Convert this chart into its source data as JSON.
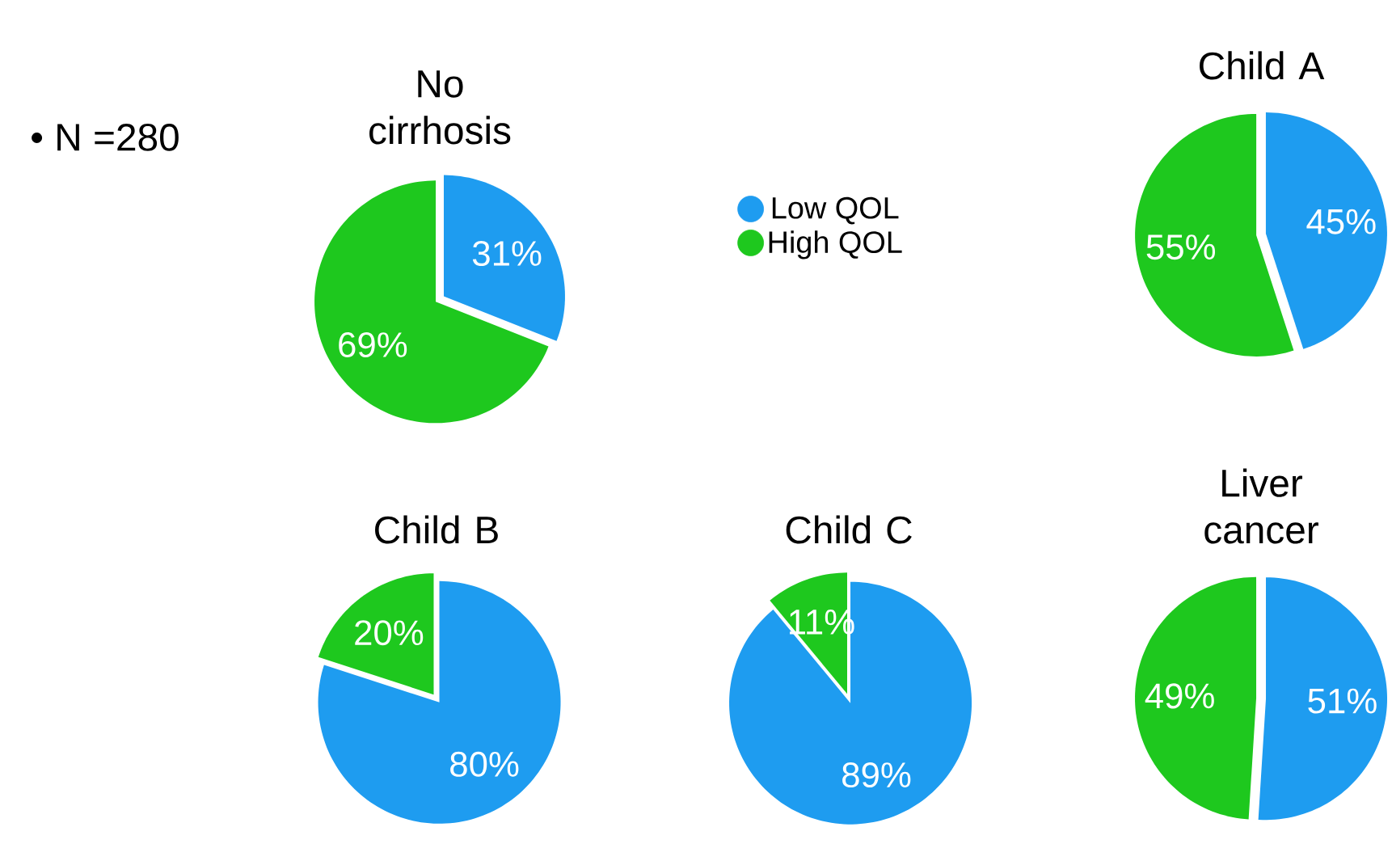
{
  "chart_data": [
    {
      "type": "pie",
      "title": "No cirrhosis",
      "categories": [
        "Low QOL",
        "High QOL"
      ],
      "values": [
        31,
        69
      ],
      "value_labels": [
        "31%",
        "69%"
      ],
      "colors": [
        "#1e9cf0",
        "#1ec81e"
      ],
      "legend": "right",
      "annotations": [
        "• N =280"
      ]
    },
    {
      "type": "pie",
      "title": "Child A",
      "categories": [
        null,
        null
      ],
      "values": [
        45,
        55
      ],
      "value_labels": [
        "45%",
        "55%"
      ],
      "colors": [
        "#1e9cf0",
        "#1ec81e"
      ]
    },
    {
      "type": "pie",
      "title": "Child B",
      "categories": [
        null,
        null
      ],
      "values": [
        80,
        20
      ],
      "value_labels": [
        "80%",
        "20%"
      ],
      "colors": [
        "#1e9cf0",
        "#1ec81e"
      ]
    },
    {
      "type": "pie",
      "title": "Child C",
      "categories": [
        null,
        null
      ],
      "values": [
        89,
        11
      ],
      "value_labels": [
        "89%",
        "11%"
      ],
      "colors": [
        "#1e9cf0",
        "#1ec81e"
      ]
    },
    {
      "type": "pie",
      "title": "Liver cancer",
      "categories": [
        null,
        null
      ],
      "values": [
        51,
        49
      ],
      "value_labels": [
        "51%",
        "49%"
      ],
      "colors": [
        "#1e9cf0",
        "#1ec81e"
      ]
    }
  ]
}
